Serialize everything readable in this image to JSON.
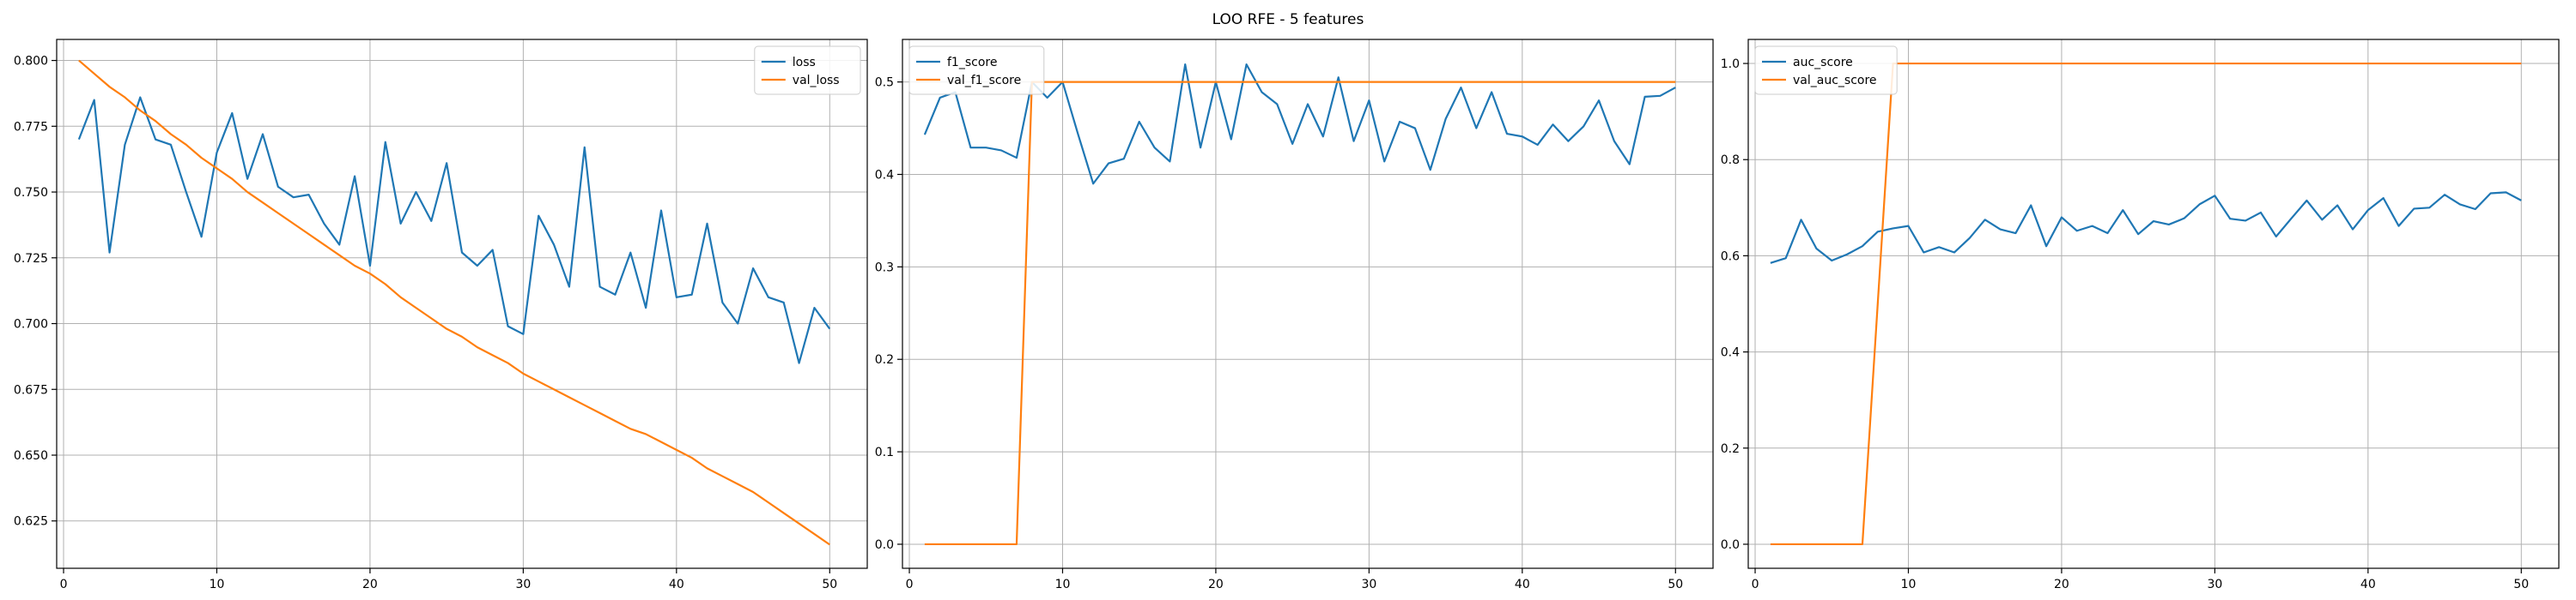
{
  "figure": {
    "title": "LOO RFE - 5 features"
  },
  "chart_data": [
    {
      "type": "line",
      "title": "",
      "xlabel": "",
      "ylabel": "",
      "xlim": [
        -0.45,
        52.45
      ],
      "ylim": [
        0.607,
        0.808
      ],
      "xticks": [
        0,
        10,
        20,
        30,
        40,
        50
      ],
      "yticks": [
        0.625,
        0.65,
        0.675,
        0.7,
        0.725,
        0.75,
        0.775,
        0.8
      ],
      "ytick_decimals": 3,
      "grid": true,
      "legend": "top-right",
      "x": [
        1,
        2,
        3,
        4,
        5,
        6,
        7,
        8,
        9,
        10,
        11,
        12,
        13,
        14,
        15,
        16,
        17,
        18,
        19,
        20,
        21,
        22,
        23,
        24,
        25,
        26,
        27,
        28,
        29,
        30,
        31,
        32,
        33,
        34,
        35,
        36,
        37,
        38,
        39,
        40,
        41,
        42,
        43,
        44,
        45,
        46,
        47,
        48,
        49,
        50
      ],
      "series": [
        {
          "name": "loss",
          "color": "#1f77b4",
          "values": [
            0.77,
            0.785,
            0.727,
            0.768,
            0.786,
            0.77,
            0.768,
            0.75,
            0.733,
            0.765,
            0.78,
            0.755,
            0.772,
            0.752,
            0.748,
            0.749,
            0.738,
            0.73,
            0.756,
            0.722,
            0.769,
            0.738,
            0.75,
            0.739,
            0.761,
            0.727,
            0.722,
            0.728,
            0.699,
            0.696,
            0.741,
            0.73,
            0.714,
            0.767,
            0.714,
            0.711,
            0.727,
            0.706,
            0.743,
            0.71,
            0.711,
            0.738,
            0.708,
            0.7,
            0.721,
            0.71,
            0.708,
            0.685,
            0.706,
            0.698
          ]
        },
        {
          "name": "val_loss",
          "color": "#ff7f0e",
          "values": [
            0.8,
            0.795,
            0.79,
            0.786,
            0.781,
            0.777,
            0.772,
            0.768,
            0.763,
            0.759,
            0.755,
            0.75,
            0.746,
            0.742,
            0.738,
            0.734,
            0.73,
            0.726,
            0.722,
            0.719,
            0.715,
            0.71,
            0.706,
            0.702,
            0.698,
            0.695,
            0.691,
            0.688,
            0.685,
            0.681,
            0.678,
            0.675,
            0.672,
            0.669,
            0.666,
            0.663,
            0.66,
            0.658,
            0.655,
            0.652,
            0.649,
            0.645,
            0.642,
            0.639,
            0.636,
            0.632,
            0.628,
            0.624,
            0.62,
            0.616
          ]
        }
      ]
    },
    {
      "type": "line",
      "title": "",
      "xlabel": "",
      "ylabel": "",
      "xlim": [
        -0.45,
        52.45
      ],
      "ylim": [
        -0.026,
        0.546
      ],
      "xticks": [
        0,
        10,
        20,
        30,
        40,
        50
      ],
      "yticks": [
        0.0,
        0.1,
        0.2,
        0.3,
        0.4,
        0.5
      ],
      "ytick_decimals": 1,
      "grid": true,
      "legend": "top-left",
      "x": [
        1,
        2,
        3,
        4,
        5,
        6,
        7,
        8,
        9,
        10,
        11,
        12,
        13,
        14,
        15,
        16,
        17,
        18,
        19,
        20,
        21,
        22,
        23,
        24,
        25,
        26,
        27,
        28,
        29,
        30,
        31,
        32,
        33,
        34,
        35,
        36,
        37,
        38,
        39,
        40,
        41,
        42,
        43,
        44,
        45,
        46,
        47,
        48,
        49,
        50
      ],
      "series": [
        {
          "name": "f1_score",
          "color": "#1f77b4",
          "values": [
            0.443,
            0.483,
            0.489,
            0.429,
            0.429,
            0.426,
            0.418,
            0.5,
            0.483,
            0.5,
            0.444,
            0.39,
            0.412,
            0.417,
            0.457,
            0.429,
            0.414,
            0.519,
            0.429,
            0.5,
            0.438,
            0.519,
            0.489,
            0.476,
            0.433,
            0.476,
            0.441,
            0.505,
            0.436,
            0.48,
            0.414,
            0.457,
            0.45,
            0.405,
            0.46,
            0.494,
            0.45,
            0.489,
            0.444,
            0.441,
            0.432,
            0.454,
            0.436,
            0.452,
            0.48,
            0.436,
            0.411,
            0.484,
            0.485,
            0.494
          ]
        },
        {
          "name": "val_f1_score",
          "color": "#ff7f0e",
          "values": [
            0,
            0,
            0,
            0,
            0,
            0,
            0,
            0.5,
            0.5,
            0.5,
            0.5,
            0.5,
            0.5,
            0.5,
            0.5,
            0.5,
            0.5,
            0.5,
            0.5,
            0.5,
            0.5,
            0.5,
            0.5,
            0.5,
            0.5,
            0.5,
            0.5,
            0.5,
            0.5,
            0.5,
            0.5,
            0.5,
            0.5,
            0.5,
            0.5,
            0.5,
            0.5,
            0.5,
            0.5,
            0.5,
            0.5,
            0.5,
            0.5,
            0.5,
            0.5,
            0.5,
            0.5,
            0.5,
            0.5,
            0.5
          ]
        }
      ]
    },
    {
      "type": "line",
      "title": "",
      "xlabel": "",
      "ylabel": "",
      "xlim": [
        -0.45,
        52.45
      ],
      "ylim": [
        -0.05,
        1.05
      ],
      "xticks": [
        0,
        10,
        20,
        30,
        40,
        50
      ],
      "yticks": [
        0.0,
        0.2,
        0.4,
        0.6,
        0.8,
        1.0
      ],
      "ytick_decimals": 1,
      "grid": true,
      "legend": "top-left",
      "x": [
        1,
        2,
        3,
        4,
        5,
        6,
        7,
        8,
        9,
        10,
        11,
        12,
        13,
        14,
        15,
        16,
        17,
        18,
        19,
        20,
        21,
        22,
        23,
        24,
        25,
        26,
        27,
        28,
        29,
        30,
        31,
        32,
        33,
        34,
        35,
        36,
        37,
        38,
        39,
        40,
        41,
        42,
        43,
        44,
        45,
        46,
        47,
        48,
        49,
        50
      ],
      "series": [
        {
          "name": "auc_score",
          "color": "#1f77b4",
          "values": [
            0.585,
            0.595,
            0.675,
            0.615,
            0.59,
            0.603,
            0.62,
            0.65,
            0.657,
            0.662,
            0.607,
            0.618,
            0.607,
            0.637,
            0.675,
            0.655,
            0.647,
            0.705,
            0.62,
            0.68,
            0.652,
            0.662,
            0.647,
            0.695,
            0.645,
            0.672,
            0.665,
            0.678,
            0.707,
            0.725,
            0.677,
            0.673,
            0.69,
            0.64,
            0.678,
            0.715,
            0.675,
            0.705,
            0.655,
            0.695,
            0.72,
            0.662,
            0.698,
            0.7,
            0.727,
            0.707,
            0.697,
            0.73,
            0.732,
            0.715
          ]
        },
        {
          "name": "val_auc_score",
          "color": "#ff7f0e",
          "values": [
            0,
            0,
            0,
            0,
            0,
            0,
            0,
            0.5,
            1,
            1,
            1,
            1,
            1,
            1,
            1,
            1,
            1,
            1,
            1,
            1,
            1,
            1,
            1,
            1,
            1,
            1,
            1,
            1,
            1,
            1,
            1,
            1,
            1,
            1,
            1,
            1,
            1,
            1,
            1,
            1,
            1,
            1,
            1,
            1,
            1,
            1,
            1,
            1,
            1,
            1
          ]
        }
      ]
    }
  ]
}
